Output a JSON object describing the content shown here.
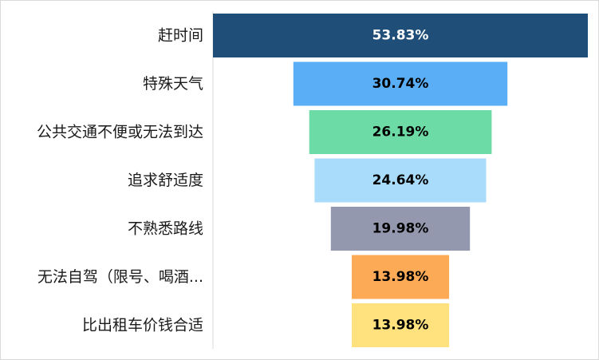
{
  "chart_data": {
    "type": "bar",
    "orientation": "horizontal-funnel",
    "categories": [
      "赶时间",
      "特殊天气",
      "公共交通不便或无法到达",
      "追求舒适度",
      "不熟悉路线",
      "无法自驾（限号、喝酒...",
      "比出租车价钱合适"
    ],
    "values": [
      53.83,
      30.74,
      26.19,
      24.64,
      19.98,
      13.98,
      13.98
    ],
    "data_labels": [
      "53.83%",
      "30.74%",
      "26.19%",
      "24.64%",
      "19.98%",
      "13.98%",
      "13.98%"
    ],
    "colors": [
      "#1f4e79",
      "#5aaef5",
      "#6ddba5",
      "#a8dcfa",
      "#9498ae",
      "#fcaa55",
      "#ffe17e"
    ],
    "label_colors": [
      "#ffffff",
      "#000000",
      "#000000",
      "#000000",
      "#000000",
      "#000000",
      "#000000"
    ],
    "value_max": 53.83,
    "title": "",
    "xlabel": "",
    "ylabel": "",
    "grid": false,
    "legend": "none"
  }
}
